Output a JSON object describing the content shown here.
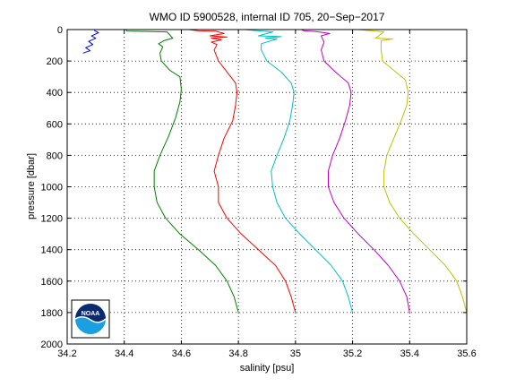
{
  "chart_data": {
    "type": "line",
    "title": "WMO ID 5900528, internal ID 705, 20−Sep−2017",
    "xlabel": "salinity [psu]",
    "ylabel": "pressure [dbar]",
    "xlim": [
      34.2,
      35.6
    ],
    "ylim": [
      0,
      2000
    ],
    "y_reversed": true,
    "grid": true,
    "xticks": [
      "34.2",
      "34.4",
      "34.6",
      "34.8",
      "35",
      "35.2",
      "35.4",
      "35.6"
    ],
    "yticks": [
      "0",
      "200",
      "400",
      "600",
      "800",
      "1000",
      "1200",
      "1400",
      "1600",
      "1800",
      "2000"
    ],
    "series": [
      {
        "color": "#0000ff",
        "points": [
          [
            34.295,
            5
          ],
          [
            34.31,
            20
          ],
          [
            34.285,
            40
          ],
          [
            34.3,
            55
          ],
          [
            34.275,
            75
          ],
          [
            34.29,
            95
          ],
          [
            34.265,
            115
          ],
          [
            34.28,
            135
          ],
          [
            34.255,
            150
          ]
        ]
      },
      {
        "color": "#008000",
        "points": [
          [
            34.405,
            0
          ],
          [
            34.41,
            10
          ],
          [
            34.48,
            12
          ],
          [
            34.55,
            15
          ],
          [
            34.57,
            55
          ],
          [
            34.54,
            70
          ],
          [
            34.52,
            90
          ],
          [
            34.535,
            110
          ],
          [
            34.525,
            150
          ],
          [
            34.53,
            200
          ],
          [
            34.56,
            260
          ],
          [
            34.595,
            300
          ],
          [
            34.6,
            380
          ],
          [
            34.595,
            460
          ],
          [
            34.58,
            560
          ],
          [
            34.555,
            680
          ],
          [
            34.525,
            800
          ],
          [
            34.505,
            900
          ],
          [
            34.505,
            1000
          ],
          [
            34.515,
            1100
          ],
          [
            34.545,
            1200
          ],
          [
            34.595,
            1300
          ],
          [
            34.66,
            1400
          ],
          [
            34.72,
            1500
          ],
          [
            34.76,
            1600
          ],
          [
            34.785,
            1700
          ],
          [
            34.8,
            1800
          ]
        ]
      },
      {
        "color": "#ff0000",
        "points": [
          [
            34.625,
            0
          ],
          [
            34.66,
            8
          ],
          [
            34.72,
            10
          ],
          [
            34.75,
            25
          ],
          [
            34.7,
            40
          ],
          [
            34.76,
            48
          ],
          [
            34.705,
            55
          ],
          [
            34.74,
            65
          ],
          [
            34.705,
            80
          ],
          [
            34.725,
            95
          ],
          [
            34.715,
            130
          ],
          [
            34.73,
            200
          ],
          [
            34.76,
            270
          ],
          [
            34.79,
            340
          ],
          [
            34.795,
            400
          ],
          [
            34.79,
            480
          ],
          [
            34.78,
            580
          ],
          [
            34.75,
            690
          ],
          [
            34.73,
            800
          ],
          [
            34.715,
            900
          ],
          [
            34.73,
            1000
          ],
          [
            34.73,
            1100
          ],
          [
            34.76,
            1200
          ],
          [
            34.81,
            1300
          ],
          [
            34.87,
            1400
          ],
          [
            34.93,
            1500
          ],
          [
            34.965,
            1600
          ],
          [
            34.985,
            1700
          ],
          [
            35.0,
            1800
          ]
        ]
      },
      {
        "color": "#00c0c0",
        "points": [
          [
            34.82,
            0
          ],
          [
            34.87,
            8
          ],
          [
            34.92,
            15
          ],
          [
            34.87,
            40
          ],
          [
            34.95,
            45
          ],
          [
            34.895,
            55
          ],
          [
            34.935,
            60
          ],
          [
            34.88,
            90
          ],
          [
            34.88,
            130
          ],
          [
            34.9,
            200
          ],
          [
            34.95,
            270
          ],
          [
            34.985,
            340
          ],
          [
            34.995,
            400
          ],
          [
            34.99,
            480
          ],
          [
            34.98,
            580
          ],
          [
            34.96,
            690
          ],
          [
            34.935,
            800
          ],
          [
            34.915,
            900
          ],
          [
            34.92,
            1000
          ],
          [
            34.935,
            1100
          ],
          [
            34.965,
            1200
          ],
          [
            35.015,
            1300
          ],
          [
            35.07,
            1400
          ],
          [
            35.125,
            1500
          ],
          [
            35.165,
            1600
          ],
          [
            35.185,
            1700
          ],
          [
            35.2,
            1800
          ]
        ]
      },
      {
        "color": "#c000c0",
        "points": [
          [
            35.02,
            0
          ],
          [
            35.03,
            8
          ],
          [
            35.07,
            12
          ],
          [
            35.12,
            25
          ],
          [
            35.09,
            40
          ],
          [
            35.1,
            80
          ],
          [
            35.09,
            130
          ],
          [
            35.1,
            200
          ],
          [
            35.14,
            270
          ],
          [
            35.185,
            340
          ],
          [
            35.195,
            400
          ],
          [
            35.19,
            480
          ],
          [
            35.175,
            580
          ],
          [
            35.155,
            690
          ],
          [
            35.13,
            800
          ],
          [
            35.115,
            900
          ],
          [
            35.115,
            1000
          ],
          [
            35.135,
            1100
          ],
          [
            35.17,
            1200
          ],
          [
            35.22,
            1300
          ],
          [
            35.275,
            1400
          ],
          [
            35.325,
            1500
          ],
          [
            35.365,
            1600
          ],
          [
            35.39,
            1700
          ],
          [
            35.4,
            1800
          ]
        ]
      },
      {
        "color": "#c0c000",
        "points": [
          [
            35.22,
            0
          ],
          [
            35.25,
            5
          ],
          [
            35.31,
            15
          ],
          [
            35.28,
            55
          ],
          [
            35.34,
            60
          ],
          [
            35.3,
            70
          ],
          [
            35.3,
            130
          ],
          [
            35.305,
            200
          ],
          [
            35.345,
            260
          ],
          [
            35.385,
            320
          ],
          [
            35.395,
            400
          ],
          [
            35.39,
            480
          ],
          [
            35.37,
            580
          ],
          [
            35.345,
            690
          ],
          [
            35.32,
            800
          ],
          [
            35.31,
            900
          ],
          [
            35.31,
            1000
          ],
          [
            35.33,
            1100
          ],
          [
            35.365,
            1200
          ],
          [
            35.415,
            1300
          ],
          [
            35.47,
            1400
          ],
          [
            35.525,
            1500
          ],
          [
            35.565,
            1600
          ],
          [
            35.585,
            1700
          ],
          [
            35.6,
            1800
          ]
        ]
      }
    ]
  },
  "logo": {
    "text": "NOAA",
    "colors": {
      "navy": "#0b2a6f",
      "sky": "#1a9fe0",
      "white": "#ffffff"
    }
  }
}
